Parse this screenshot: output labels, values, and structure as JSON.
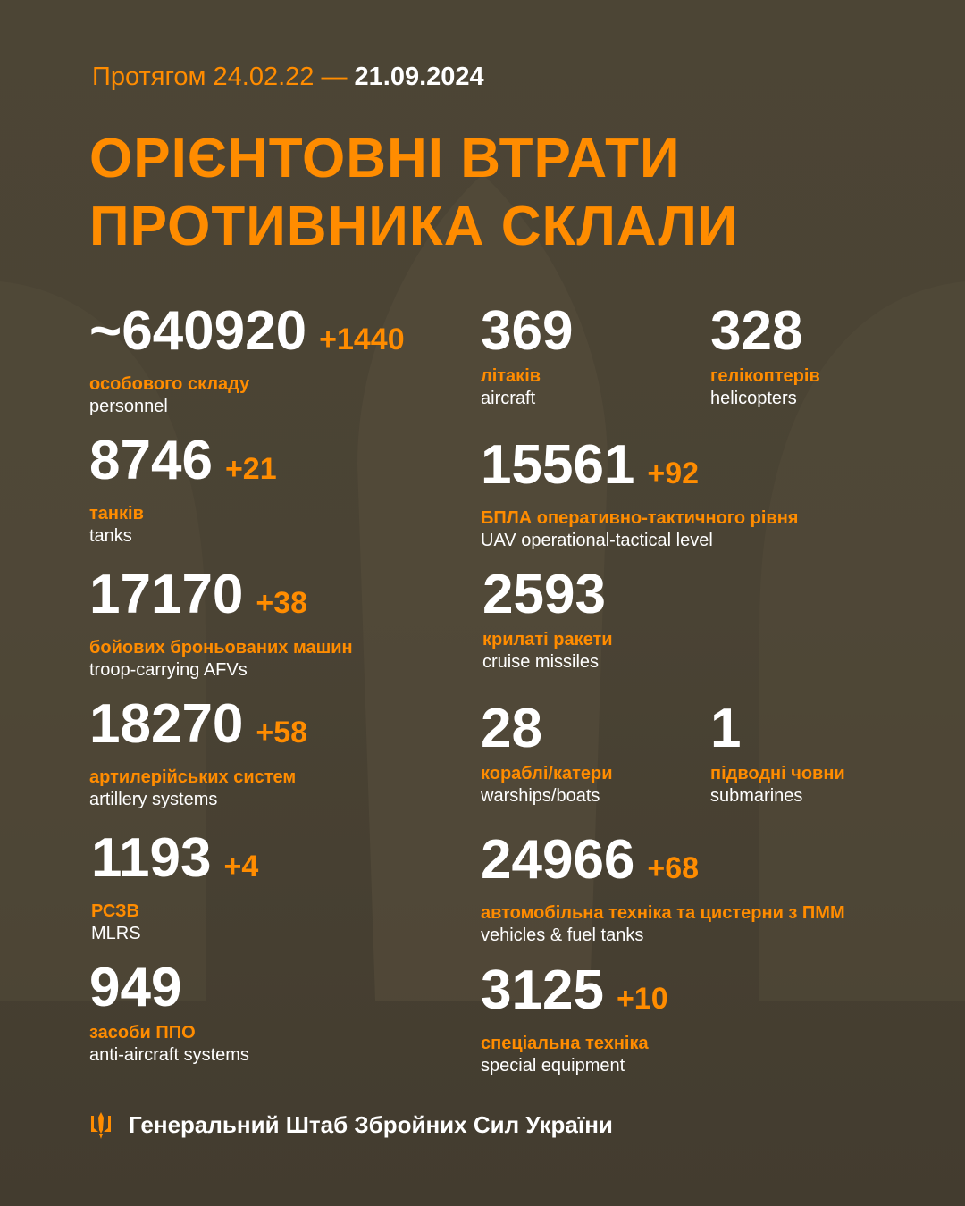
{
  "colors": {
    "accent": "#ff8c00",
    "text": "#ffffff",
    "background": "#4b4434"
  },
  "header": {
    "period_prefix": "Протягом 24.02.22 —",
    "period_end": "21.09.2024",
    "title_line1": "ОРІЄНТОВНІ ВТРАТИ",
    "title_line2": "ПРОТИВНИКА СКЛАЛИ"
  },
  "items": [
    {
      "value": "~640920",
      "delta": "+1440",
      "ua": "особового складу",
      "en": "personnel"
    },
    {
      "value": "369",
      "delta": "",
      "ua": "літаків",
      "en": "aircraft"
    },
    {
      "value": "328",
      "delta": "",
      "ua": "гелікоптерів",
      "en": "helicopters"
    },
    {
      "value": "8746",
      "delta": "+21",
      "ua": "танків",
      "en": "tanks"
    },
    {
      "value": "15561",
      "delta": "+92",
      "ua": "БПЛА оперативно-тактичного рівня",
      "en": "UAV operational-tactical level"
    },
    {
      "value": "17170",
      "delta": "+38",
      "ua": "бойових броньованих машин",
      "en": "troop-carrying AFVs"
    },
    {
      "value": "2593",
      "delta": "",
      "ua": "крилаті ракети",
      "en": "cruise missiles"
    },
    {
      "value": "18270",
      "delta": "+58",
      "ua": "артилерійських систем",
      "en": "artillery systems"
    },
    {
      "value": "28",
      "delta": "",
      "ua": "кораблі/катери",
      "en": "warships/boats"
    },
    {
      "value": "1",
      "delta": "",
      "ua": "підводні човни",
      "en": "submarines"
    },
    {
      "value": "1193",
      "delta": "+4",
      "ua": "РСЗВ",
      "en": "MLRS"
    },
    {
      "value": "24966",
      "delta": "+68",
      "ua": "автомобільна техніка та цистерни з ПММ",
      "en": "vehicles & fuel tanks"
    },
    {
      "value": "949",
      "delta": "",
      "ua": "засоби ППО",
      "en": "anti-aircraft systems"
    },
    {
      "value": "3125",
      "delta": "+10",
      "ua": "спеціальна техніка",
      "en": "special equipment"
    }
  ],
  "footer": {
    "icon": "trident-icon",
    "text": "Генеральний Штаб Збройних Сил України"
  }
}
